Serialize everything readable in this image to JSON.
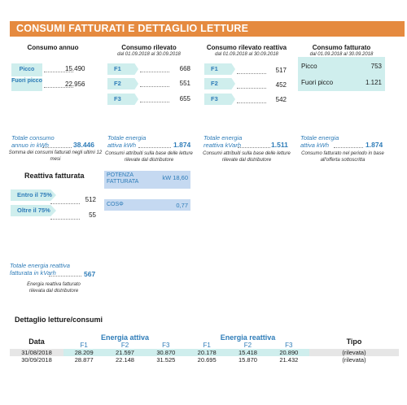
{
  "header": {
    "title": "CONSUMI FATTURATI E DETTAGLIO LETTURE"
  },
  "consumo_annuo": {
    "title": "Consumo annuo",
    "rows": [
      {
        "label": "Picco",
        "value": "15.490"
      },
      {
        "label": "Fuori picco",
        "value": "22.956"
      }
    ],
    "total_label": "Totale consumo annuo in kWh",
    "total_value": "38.446",
    "note": "Somma dei consumi fatturati negli ultimi 12 mesi"
  },
  "consumo_rilevato": {
    "title": "Consumo rilevato",
    "period": "dal 01.09.2018 al 30.09.2018",
    "rows": [
      {
        "label": "F1",
        "value": "668"
      },
      {
        "label": "F2",
        "value": "551"
      },
      {
        "label": "F3",
        "value": "655"
      }
    ],
    "total_label": "Totale energia attiva kWh",
    "total_value": "1.874",
    "note": "Consumi attribuiti sulla base delle letture rilevate dal distributore"
  },
  "consumo_reattiva": {
    "title": "Consumo rilevato reattiva",
    "period": "dal 01.09.2018 al 30.09.2018",
    "rows": [
      {
        "label": "F1",
        "value": "517"
      },
      {
        "label": "F2",
        "value": "452"
      },
      {
        "label": "F3",
        "value": "542"
      }
    ],
    "total_label": "Totale energia reattiva kVarh",
    "total_value": "1.511",
    "note": "Consumi attribuiti sulla base delle letture rilevate dal distributore"
  },
  "consumo_fatturato": {
    "title": "Consumo fatturato",
    "period": "dal 01.09.2018 al 30.09.2018",
    "rows": [
      {
        "label": "Picco",
        "value": "753"
      },
      {
        "label": "Fuori picco",
        "value": "1.121"
      }
    ],
    "total_label": "Totale energia attiva kWh",
    "total_value": "1.874",
    "note": "Consumo fatturato nel periodo in base all'offerta sottoscritta"
  },
  "potenza": {
    "label": "POTENZA FATTURATA",
    "value": "kW 18,60",
    "cos_label": "COSΦ",
    "cos_value": "0,77"
  },
  "reattiva_fatturata": {
    "title": "Reattiva fatturata",
    "rows": [
      {
        "label": "Entro il 75%",
        "value": "512"
      },
      {
        "label": "Oltre il 75%",
        "value": "55"
      }
    ],
    "total_label": "Totale energia reattiva fatturata in kVarh",
    "total_value": "567",
    "note": "Energia reattiva fatturato rilevata dal distributore"
  },
  "dettaglio": {
    "title": "Dettaglio letture/consumi",
    "col_data": "Data",
    "group_attiva": "Energia attiva",
    "group_reattiva": "Energia reattiva",
    "col_tipo": "Tipo",
    "sub": [
      "F1",
      "F2",
      "F3",
      "F1",
      "F2",
      "F3"
    ],
    "rows": [
      {
        "data": "31/08/2018",
        "vals": [
          "28.209",
          "21.597",
          "30.870",
          "20.178",
          "15.418",
          "20.890"
        ],
        "tipo": "(rilevata)"
      },
      {
        "data": "30/09/2018",
        "vals": [
          "28.877",
          "22.148",
          "31.525",
          "20.695",
          "15.870",
          "21.432"
        ],
        "tipo": "(rilevata)"
      }
    ]
  }
}
